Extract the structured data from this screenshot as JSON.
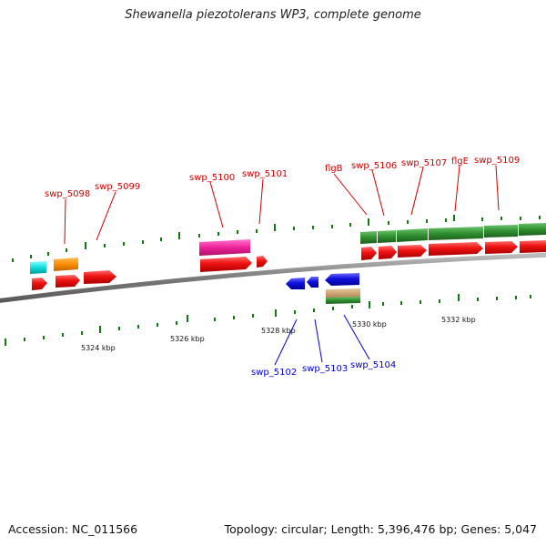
{
  "title": "Shewanella piezotolerans WP3, complete genome",
  "footer": {
    "accession": "Accession: NC_011566",
    "summary": "Topology: circular; Length: 5,396,476 bp; Genes: 5,047"
  },
  "scale_labels": [
    "5324 kbp",
    "5326 kbp",
    "5328 kbp",
    "5330 kbp",
    "5332 kbp"
  ],
  "gene_labels_top": [
    "swp_5098",
    "swp_5099",
    "swp_5100",
    "swp_5101",
    "flgB",
    "swp_5106",
    "swp_5107",
    "flgE",
    "swp_5109"
  ],
  "gene_labels_bottom": [
    "swp_5102",
    "swp_5103",
    "swp_5104"
  ],
  "colors": {
    "forward_gene": "#ee1111",
    "reverse_gene": "#1111dd",
    "top_label": "#cc0000",
    "bottom_label": "#0000cc",
    "green_feature": "#2f8f2f",
    "magenta_feature": "#ee2299",
    "cyan_feature": "#11dddd",
    "orange_feature": "#ff8c00",
    "tan_feature": "#c8a070",
    "tick": "#117711",
    "backbone": "#8a8a8a"
  }
}
